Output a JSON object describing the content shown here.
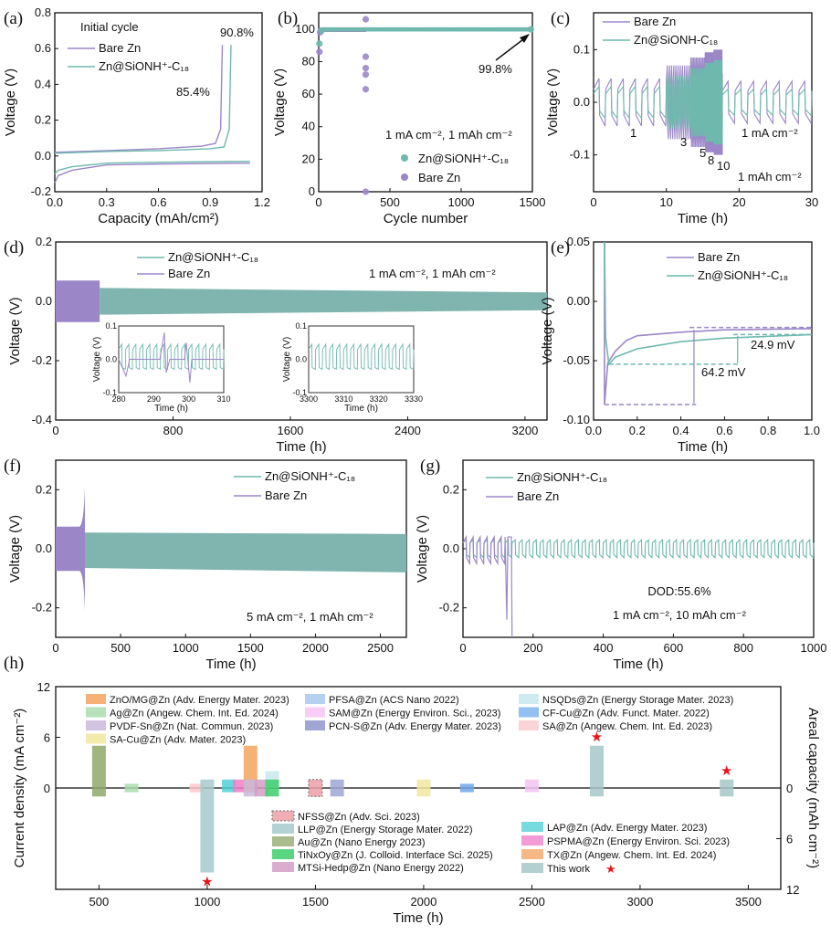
{
  "colors": {
    "bare": "#9b87c8",
    "coated": "#6fb8ad",
    "fill_coated": "#7fb5ae",
    "fill_bare": "#9b87c8",
    "star": "#e8141b"
  },
  "chart_data": [
    {
      "panel": "(a)",
      "type": "line",
      "xlabel": "Capacity (mAh/cm²)",
      "ylabel": "Voltage (V)",
      "xlim": [
        0.0,
        1.2
      ],
      "ylim": [
        -0.2,
        0.8
      ],
      "xticks": [
        "0.0",
        "0.3",
        "0.6",
        "0.9",
        "1.2"
      ],
      "yticks": [
        "-0.2",
        "0.0",
        "0.2",
        "0.4",
        "0.6",
        "0.8"
      ],
      "legend_title": "Initial cycle",
      "legend": [
        "Bare Zn",
        "Zn@SiONH⁺-C₁₈"
      ],
      "annotations": [
        "90.8%",
        "85.4%"
      ],
      "series": [
        {
          "name": "Bare Zn",
          "charge": [
            [
              0,
              0.02
            ],
            [
              0.3,
              0.03
            ],
            [
              0.6,
              0.04
            ],
            [
              0.85,
              0.055
            ],
            [
              0.93,
              0.07
            ],
            [
              0.96,
              0.15
            ],
            [
              0.97,
              0.62
            ]
          ],
          "discharge": [
            [
              0,
              -0.15
            ],
            [
              0.02,
              -0.11
            ],
            [
              0.1,
              -0.08
            ],
            [
              0.3,
              -0.05
            ],
            [
              0.6,
              -0.045
            ],
            [
              1.13,
              -0.04
            ]
          ]
        },
        {
          "name": "Zn@SiONH⁺-C₁₈",
          "charge": [
            [
              0,
              0.015
            ],
            [
              0.3,
              0.025
            ],
            [
              0.6,
              0.03
            ],
            [
              0.9,
              0.04
            ],
            [
              0.98,
              0.05
            ],
            [
              1.01,
              0.15
            ],
            [
              1.02,
              0.62
            ]
          ],
          "discharge": [
            [
              0,
              -0.1
            ],
            [
              0.02,
              -0.08
            ],
            [
              0.1,
              -0.06
            ],
            [
              0.3,
              -0.04
            ],
            [
              0.6,
              -0.035
            ],
            [
              1.13,
              -0.03
            ]
          ]
        }
      ]
    },
    {
      "panel": "(b)",
      "type": "scatter",
      "xlabel": "Cycle number",
      "ylabel": "Voltage (V)",
      "xlim": [
        0,
        1500
      ],
      "ylim": [
        0,
        110
      ],
      "xticks": [
        "0",
        "500",
        "1000",
        "1500"
      ],
      "yticks": [
        "0",
        "20",
        "40",
        "60",
        "80",
        "100"
      ],
      "conditions": "1 mA cm⁻², 1 mAh cm⁻²",
      "legend": [
        "Zn@SiONH⁺-C₁₈",
        "Bare Zn"
      ],
      "annotation": "99.8%",
      "series": [
        {
          "name": "Zn@SiONH⁺-C₁₈",
          "points": [
            [
              5,
              91
            ],
            [
              20,
              99
            ],
            [
              1490,
              99.8
            ]
          ],
          "steady_value": 99.8,
          "range": [
            20,
            1490
          ]
        },
        {
          "name": "Bare Zn",
          "points": [
            [
              5,
              86
            ],
            [
              10,
              98
            ],
            [
              330,
              0
            ],
            [
              330,
              63
            ],
            [
              330,
              72
            ],
            [
              330,
              76
            ],
            [
              330,
              83
            ],
            [
              330,
              106
            ]
          ],
          "steady_value": 99.5,
          "range": [
            10,
            330
          ]
        }
      ]
    },
    {
      "panel": "(c)",
      "type": "line",
      "xlabel": "Time (h)",
      "ylabel": "Voltage (V)",
      "xlim": [
        0,
        30
      ],
      "ylim": [
        -0.17,
        0.17
      ],
      "xticks": [
        "0",
        "10",
        "20",
        "30"
      ],
      "yticks": [
        "-0.1",
        "0.0",
        "0.1"
      ],
      "legend": [
        "Bare Zn",
        "Zn@SiONH-C₁₈"
      ],
      "rate_labels": [
        "1",
        "3",
        "5",
        "8",
        "10"
      ],
      "conditions": [
        "1 mA cm⁻²",
        "1 mAh cm⁻²"
      ],
      "segments": [
        {
          "rate": 1,
          "t": [
            0,
            10
          ],
          "bare_amp": 0.045,
          "coated_amp": 0.03
        },
        {
          "rate": 3,
          "t": [
            10,
            13.3
          ],
          "bare_amp": 0.07,
          "coated_amp": 0.05
        },
        {
          "rate": 5,
          "t": [
            13.3,
            15.3
          ],
          "bare_amp": 0.085,
          "coated_amp": 0.065
        },
        {
          "rate": 8,
          "t": [
            15.3,
            16.5
          ],
          "bare_amp": 0.095,
          "coated_amp": 0.075
        },
        {
          "rate": 10,
          "t": [
            16.5,
            17.7
          ],
          "bare_amp": 0.1,
          "coated_amp": 0.08
        },
        {
          "rate": 1,
          "t": [
            17.7,
            30
          ],
          "bare_amp": 0.04,
          "coated_amp": 0.025
        }
      ]
    },
    {
      "panel": "(d)",
      "type": "area",
      "xlabel": "Time (h)",
      "ylabel": "Voltage (V)",
      "xlim": [
        0,
        3350
      ],
      "ylim": [
        -0.4,
        0.2
      ],
      "xticks": [
        "0",
        "800",
        "1600",
        "2400",
        "3200"
      ],
      "yticks": [
        "-0.4",
        "-0.2",
        "0.0",
        "0.2"
      ],
      "legend": [
        "Zn@SiONH⁺-C₁₈",
        "Bare Zn"
      ],
      "conditions": "1 mA cm⁻², 1 mAh cm⁻²",
      "series": [
        {
          "name": "Bare Zn",
          "t": [
            0,
            300
          ],
          "amplitude": 0.07
        },
        {
          "name": "Zn@SiONH⁺-C₁₈",
          "t": [
            300,
            3350
          ],
          "amplitude_start": 0.045,
          "amplitude_end": 0.03
        }
      ],
      "insets": [
        {
          "xlim": [
            280,
            310
          ],
          "ylim": [
            -0.1,
            0.1
          ],
          "xticks": [
            "280",
            "290",
            "300",
            "310"
          ],
          "yticks": [
            "-0.1",
            "0.0",
            "0.1"
          ],
          "xlabel": "Time (h)",
          "ylabel": "Voltage (V)"
        },
        {
          "xlim": [
            3300,
            3330
          ],
          "ylim": [
            -0.1,
            0.1
          ],
          "xticks": [
            "3300",
            "3310",
            "3320",
            "3330"
          ],
          "yticks": [
            "-0.1",
            "0.0",
            "0.1"
          ],
          "xlabel": "Time (h)",
          "ylabel": "Voltage (V)"
        }
      ]
    },
    {
      "panel": "(e)",
      "type": "line",
      "xlabel": "Time (h)",
      "ylabel": "Voltage (V)",
      "xlim": [
        0.0,
        1.0
      ],
      "ylim": [
        -0.1,
        0.05
      ],
      "xticks": [
        "0.0",
        "0.2",
        "0.4",
        "0.6",
        "0.8",
        "1.0"
      ],
      "yticks": [
        "-0.10",
        "-0.05",
        "0.00",
        "0.05"
      ],
      "legend": [
        "Bare Zn",
        "Zn@SiONH⁺-C₁₈"
      ],
      "annotations": [
        "24.9 mV",
        "64.2 mV"
      ],
      "series": [
        {
          "name": "Bare Zn",
          "points": [
            [
              0.05,
              0.05
            ],
            [
              0.05,
              -0.087
            ],
            [
              0.065,
              -0.052
            ],
            [
              0.1,
              -0.042
            ],
            [
              0.15,
              -0.033
            ],
            [
              0.2,
              -0.029
            ],
            [
              0.4,
              -0.026
            ],
            [
              0.6,
              -0.024
            ],
            [
              1.0,
              -0.023
            ]
          ]
        },
        {
          "name": "Zn@SiONH⁺-C₁₈",
          "points": [
            [
              0.05,
              0.05
            ],
            [
              0.055,
              -0.03
            ],
            [
              0.07,
              -0.053
            ],
            [
              0.1,
              -0.047
            ],
            [
              0.2,
              -0.04
            ],
            [
              0.4,
              -0.034
            ],
            [
              0.6,
              -0.031
            ],
            [
              1.0,
              -0.028
            ]
          ]
        }
      ]
    },
    {
      "panel": "(f)",
      "type": "area",
      "xlabel": "Time (h)",
      "ylabel": "Voltage (V)",
      "xlim": [
        0,
        2700
      ],
      "ylim": [
        -0.3,
        0.3
      ],
      "xticks": [
        "0",
        "500",
        "1000",
        "1500",
        "2000",
        "2500"
      ],
      "yticks": [
        "-0.2",
        "0.0",
        "0.2"
      ],
      "legend": [
        "Zn@SiONH⁺-C₁₈",
        "Bare Zn"
      ],
      "conditions": "5 mA cm⁻², 1 mAh cm⁻²",
      "series": [
        {
          "name": "Bare Zn",
          "t": [
            0,
            225
          ],
          "amplitude": 0.075,
          "spike": 0.21
        },
        {
          "name": "Zn@SiONH⁺-C₁₈",
          "t": [
            225,
            2700
          ],
          "amplitude": 0.055
        }
      ]
    },
    {
      "panel": "(g)",
      "type": "line",
      "xlabel": "Time (h)",
      "ylabel": "Voltage (V)",
      "xlim": [
        0,
        1000
      ],
      "ylim": [
        -0.3,
        0.3
      ],
      "xticks": [
        "0",
        "200",
        "400",
        "600",
        "800",
        "1000"
      ],
      "yticks": [
        "-0.2",
        "0.0",
        "0.2"
      ],
      "legend": [
        "Zn@SiONH⁺-C₁₈",
        "Bare Zn"
      ],
      "conditions": [
        "DOD:55.6%",
        "1 mA cm⁻², 10 mAh cm⁻²"
      ],
      "series": [
        {
          "name": "Bare Zn",
          "t": [
            0,
            140
          ],
          "period_h": 20,
          "amplitude": 0.04,
          "failure_drop": -0.3
        },
        {
          "name": "Zn@SiONH⁺-C₁₈",
          "t": [
            0,
            1000
          ],
          "period_h": 20,
          "amplitude": 0.03
        }
      ]
    },
    {
      "panel": "(h)",
      "type": "bar",
      "xlabel": "Time (h)",
      "ylabel_left": "Current density (mA cm⁻²)",
      "ylabel_right": "Areal capacity (mAh cm⁻²)",
      "xlim": [
        300,
        3650
      ],
      "ylim": [
        -12,
        12
      ],
      "xticks": [
        "500",
        "1000",
        "1500",
        "2000",
        "2500",
        "3000",
        "3500"
      ],
      "yticks_left": [
        "0",
        "6",
        "12"
      ],
      "yticks_right": [
        "0",
        "6",
        "12"
      ],
      "bars": [
        {
          "label": "Au@Zn (Nano Energy 2023)",
          "time": 500,
          "current": 5,
          "capacity": 1,
          "color": "#8fa86a"
        },
        {
          "label": "Ag@Zn (Angew. Chem. Int. Ed. 2024)",
          "time": 650,
          "current": 0.5,
          "capacity": 0.5,
          "color": "#a8dcaf"
        },
        {
          "label": "SA@Zn (Angew. Chem. Int. Ed. 2023)",
          "time": 950,
          "current": 0.5,
          "capacity": 0.5,
          "color": "#f9c8cc"
        },
        {
          "label": "LLP@Zn (Energy Storage Mater. 2022)",
          "time": 1000,
          "current": 1,
          "capacity": 10,
          "color": "#a7cacb",
          "star": true
        },
        {
          "label": "LAP@Zn (Adv. Energy Mater. 2023)",
          "time": 1100,
          "current": 1,
          "capacity": 0.5,
          "color": "#4fd0d6"
        },
        {
          "label": "PSPMA@Zn (Energy Environ. Sci. 2023)",
          "time": 1150,
          "current": 1,
          "capacity": 0.5,
          "color": "#f27ec8"
        },
        {
          "label": "TX@Zn (Angew. Chem. Int. Ed. 2024)",
          "time": 1200,
          "current": 5,
          "capacity": 0.5,
          "color": "#f4a45e"
        },
        {
          "label": "PVDF-Sn@Zn (Nat. Commun. 2023)",
          "time": 1200,
          "current": 1,
          "capacity": 1,
          "color": "#c9b8dc"
        },
        {
          "label": "MTSi-Hedp@Zn (Nano Energy 2022)",
          "time": 1250,
          "current": 1,
          "capacity": 1,
          "color": "#d49ec4"
        },
        {
          "label": "NSQDs@Zn (Energy Storage Mater. 2023)",
          "time": 1300,
          "current": 2,
          "capacity": 0,
          "color": "#c8e8ec"
        },
        {
          "label": "TiNxOy@Zn (J. Colloid. Interface Sci. 2025)",
          "time": 1300,
          "current": 1,
          "capacity": 1,
          "color": "#3dcf6b"
        },
        {
          "label": "NFSS@Zn (Adv. Sci. 2023)",
          "time": 1500,
          "current": 1,
          "capacity": 1,
          "color": "#eda0a8",
          "dashed": true
        },
        {
          "label": "PCN-S@Zn (Adv. Energy Mater. 2023)",
          "time": 1600,
          "current": 1,
          "capacity": 1,
          "color": "#9ea6d4"
        },
        {
          "label": "SA-Cu@Zn (Adv. Mater. 2023)",
          "time": 2000,
          "current": 1,
          "capacity": 1,
          "color": "#f1e6a0"
        },
        {
          "label": "CF-Cu@Zn (Adv. Funct. Mater. 2022)",
          "time": 2200,
          "current": 0.5,
          "capacity": 0.5,
          "color": "#6fa8e6"
        },
        {
          "label": "SAM@Zn (Energy Environ. Sci., 2023)",
          "time": 2500,
          "current": 1,
          "capacity": 0.5,
          "color": "#f4c4f0"
        },
        {
          "label": "This work",
          "time": 2800,
          "current": 5,
          "capacity": 1,
          "color": "#a7c7c7",
          "star": true
        },
        {
          "label": "This work",
          "time": 3400,
          "current": 1,
          "capacity": 1,
          "color": "#a7c7c7",
          "star": true
        }
      ],
      "legend_top": [
        {
          "label": "ZnO/MG@Zn (Adv. Energy Mater. 2023)",
          "color": "#f4a45e"
        },
        {
          "label": "Ag@Zn (Angew. Chem. Int. Ed. 2024)",
          "color": "#a8dcaf"
        },
        {
          "label": "PVDF-Sn@Zn (Nat. Commun. 2023)",
          "color": "#c9b8dc"
        },
        {
          "label": "SA-Cu@Zn (Adv. Mater. 2023)",
          "color": "#f1e6a0"
        },
        {
          "label": "PFSA@Zn (ACS Nano 2022)",
          "color": "#a9c8f0"
        },
        {
          "label": "SAM@Zn (Energy Environ. Sci., 2023)",
          "color": "#f8c6f4"
        },
        {
          "label": "PCN-S@Zn (Adv. Energy Mater. 2023)",
          "color": "#8e97cc"
        },
        {
          "label": "NSQDs@Zn (Energy Storage Mater. 2023)",
          "color": "#c8e8ec"
        },
        {
          "label": "CF-Cu@Zn (Adv. Funct. Mater. 2022)",
          "color": "#7cb6ef"
        },
        {
          "label": "SA@Zn (Angew. Chem. Int. Ed. 2023)",
          "color": "#f9cdd0"
        }
      ],
      "legend_bottom": [
        {
          "label": "NFSS@Zn (Adv. Sci. 2023)",
          "color": "#eda0a8",
          "dashed": true
        },
        {
          "label": "LLP@Zn (Energy Storage Mater. 2022)",
          "color": "#a7cacb"
        },
        {
          "label": "Au@Zn (Nano Energy 2023)",
          "color": "#9ab07a"
        },
        {
          "label": "TiNxOy@Zn (J. Colloid. Interface Sci. 2025)",
          "color": "#3dcf6b"
        },
        {
          "label": "MTSi-Hedp@Zn (Nano Energy 2022)",
          "color": "#d49ec4"
        },
        {
          "label": "LAP@Zn (Adv. Energy Mater. 2023)",
          "color": "#5fd4d8"
        },
        {
          "label": "PSPMA@Zn (Energy Environ. Sci. 2023)",
          "color": "#f08ad0"
        },
        {
          "label": "TX@Zn (Angew. Chem. Int. Ed. 2024)",
          "color": "#f4ac70"
        },
        {
          "label": "This work",
          "color": "#a7c7c7",
          "star": true
        }
      ]
    }
  ]
}
